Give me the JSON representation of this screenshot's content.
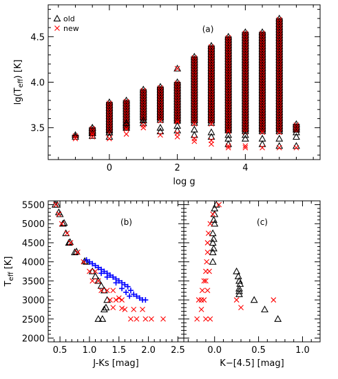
{
  "colors": {
    "old": "#000000",
    "new": "#ff0000",
    "blue": "#0000ff"
  },
  "chart_data": [
    {
      "type": "scatter",
      "panel_label": "(a)",
      "xlabel": "log g",
      "ylabel": "lg(T",
      "ylabel_sub": "eff",
      "ylabel_tail": ") [K]",
      "xlim": [
        -1.8,
        6.2
      ],
      "ylim": [
        3.15,
        4.85
      ],
      "xticks": [
        0,
        2,
        4
      ],
      "yticks": [
        3.5,
        4.0,
        4.5
      ],
      "xtick_labels": [
        "0",
        "2",
        "4"
      ],
      "ytick_labels": [
        "3.5",
        "4.0",
        "4.5"
      ],
      "legend": {
        "old": "old",
        "new": "new",
        "placement": "top-left"
      },
      "columns": [
        {
          "logg": -1.0,
          "min": 3.4,
          "max": 3.42,
          "old_lows": [
            3.4
          ],
          "new_lows": [
            3.38
          ]
        },
        {
          "logg": -0.5,
          "min": 3.42,
          "max": 3.5,
          "old_lows": [
            3.41,
            3.45
          ],
          "new_lows": [
            3.4
          ]
        },
        {
          "logg": -0.5,
          "min": 3.42,
          "max": 3.5,
          "old_lows": [],
          "new_lows": []
        },
        {
          "logg": 0.0,
          "min": 3.44,
          "max": 3.78,
          "old_lows": [
            3.4,
            3.45
          ],
          "new_lows": [
            3.38
          ]
        },
        {
          "logg": 0.5,
          "min": 3.48,
          "max": 3.8,
          "old_lows": [
            3.55
          ],
          "new_lows": [
            3.43
          ]
        },
        {
          "logg": 1.0,
          "min": 3.58,
          "max": 3.92,
          "old_lows": [
            3.55,
            3.58
          ],
          "new_lows": [
            3.5,
            3.53
          ]
        },
        {
          "logg": 1.5,
          "min": 3.58,
          "max": 3.95,
          "old_lows": [
            3.46,
            3.5
          ],
          "new_lows": [
            3.42
          ]
        },
        {
          "logg": 2.0,
          "min": 3.55,
          "max": 4.0,
          "old_lows": [
            3.47,
            3.52
          ],
          "new_lows": [
            3.4,
            3.44
          ]
        },
        {
          "logg": 2.5,
          "min": 3.55,
          "max": 4.28,
          "old_lows": [
            3.42,
            3.48
          ],
          "new_lows": [
            3.35,
            3.38
          ]
        },
        {
          "logg": 3.0,
          "min": 3.55,
          "max": 4.4,
          "old_lows": [
            3.4,
            3.45
          ],
          "new_lows": [
            3.32,
            3.36
          ]
        },
        {
          "logg": 3.5,
          "min": 3.45,
          "max": 4.5,
          "old_lows": [
            3.32,
            3.38,
            3.42
          ],
          "new_lows": [
            3.28,
            3.3
          ]
        },
        {
          "logg": 4.0,
          "min": 3.45,
          "max": 4.55,
          "old_lows": [
            3.38,
            3.42
          ],
          "new_lows": [
            3.28,
            3.3
          ]
        },
        {
          "logg": 4.5,
          "min": 3.45,
          "max": 4.55,
          "old_lows": [
            3.32,
            3.38
          ],
          "new_lows": [
            3.28
          ]
        },
        {
          "logg": 5.0,
          "min": 3.45,
          "max": 4.7,
          "old_lows": [
            3.3,
            3.38
          ],
          "new_lows": [
            3.28
          ]
        },
        {
          "logg": 5.5,
          "min": 3.45,
          "max": 3.54,
          "old_lows": [
            3.3,
            3.4,
            3.45
          ],
          "new_lows": [
            3.28
          ]
        }
      ],
      "stray_points": [
        {
          "series": "old",
          "x": 2.0,
          "y": 4.15
        },
        {
          "series": "new",
          "x": 2.0,
          "y": 4.15
        }
      ]
    },
    {
      "type": "scatter",
      "panel_label": "(b)",
      "xlabel": "J-Ks [mag]",
      "ylabel": "T",
      "ylabel_sub": "eff",
      "ylabel_tail": " [K]",
      "xlim": [
        0.3,
        2.6
      ],
      "ylim": [
        1900,
        5600
      ],
      "xticks": [
        0.5,
        1.0,
        1.5,
        2.0,
        2.5
      ],
      "xtick_labels": [
        "0.5",
        "1.0",
        "1.5",
        "2.0",
        "2.5"
      ],
      "yticks": [
        2000,
        2500,
        3000,
        3500,
        4000,
        4500,
        5000,
        5500
      ],
      "ytick_labels": [
        "2000",
        "2500",
        "3000",
        "3500",
        "4000",
        "4500",
        "5000",
        "5500"
      ],
      "series": [
        {
          "name": "old",
          "marker": "triangle",
          "points": [
            [
              0.42,
              5500
            ],
            [
              0.45,
              5500
            ],
            [
              0.5,
              5250
            ],
            [
              0.55,
              5000
            ],
            [
              0.6,
              4750
            ],
            [
              0.65,
              4500
            ],
            [
              0.75,
              4250
            ],
            [
              0.95,
              4000
            ],
            [
              1.05,
              3750
            ],
            [
              1.15,
              3500
            ],
            [
              1.25,
              3250
            ],
            [
              1.3,
              3000
            ],
            [
              1.28,
              2800
            ],
            [
              1.25,
              2750
            ],
            [
              1.15,
              2500
            ],
            [
              1.22,
              2500
            ],
            [
              0.48,
              5300
            ],
            [
              0.57,
              5020
            ],
            [
              0.67,
              4520
            ],
            [
              0.78,
              4270
            ],
            [
              0.92,
              4020
            ],
            [
              1.1,
              3620
            ],
            [
              1.2,
              3370
            ]
          ]
        },
        {
          "name": "new",
          "marker": "cross",
          "points": [
            [
              0.43,
              5500
            ],
            [
              0.48,
              5250
            ],
            [
              0.53,
              5000
            ],
            [
              0.62,
              4750
            ],
            [
              0.68,
              4500
            ],
            [
              0.8,
              4250
            ],
            [
              0.9,
              4000
            ],
            [
              1.0,
              3750
            ],
            [
              1.1,
              3750
            ],
            [
              1.15,
              3500
            ],
            [
              1.05,
              3500
            ],
            [
              1.2,
              3250
            ],
            [
              1.3,
              3250
            ],
            [
              1.4,
              3250
            ],
            [
              1.35,
              3000
            ],
            [
              1.45,
              3000
            ],
            [
              1.55,
              3000
            ],
            [
              1.6,
              2750
            ],
            [
              1.75,
              2750
            ],
            [
              1.9,
              2750
            ],
            [
              1.7,
              2500
            ],
            [
              1.8,
              2500
            ],
            [
              1.95,
              2500
            ],
            [
              2.05,
              2500
            ],
            [
              2.25,
              2500
            ],
            [
              1.4,
              2800
            ],
            [
              1.55,
              2780
            ],
            [
              1.5,
              3050
            ]
          ]
        },
        {
          "name": "new-blue",
          "marker": "plus",
          "points": [
            [
              0.95,
              4050
            ],
            [
              1.0,
              4000
            ],
            [
              1.05,
              3950
            ],
            [
              1.1,
              3900
            ],
            [
              1.15,
              3850
            ],
            [
              1.2,
              3800
            ],
            [
              1.25,
              3750
            ],
            [
              1.3,
              3700
            ],
            [
              1.35,
              3650
            ],
            [
              1.4,
              3600
            ],
            [
              1.45,
              3550
            ],
            [
              1.5,
              3500
            ],
            [
              1.55,
              3450
            ],
            [
              1.6,
              3400
            ],
            [
              1.65,
              3350
            ],
            [
              1.7,
              3250
            ],
            [
              1.75,
              3150
            ],
            [
              1.8,
              3100
            ],
            [
              1.85,
              3050
            ],
            [
              1.9,
              3000
            ],
            [
              1.95,
              3000
            ],
            [
              1.2,
              3700
            ],
            [
              1.3,
              3600
            ],
            [
              1.45,
              3450
            ],
            [
              1.55,
              3300
            ],
            [
              1.62,
              3200
            ],
            [
              1.68,
              3100
            ]
          ]
        }
      ]
    },
    {
      "type": "scatter",
      "panel_label": "(c)",
      "xlabel": "K−[4.5] [mag]",
      "xlim": [
        -0.35,
        1.2
      ],
      "ylim": [
        1900,
        5600
      ],
      "xticks": [
        0.0,
        0.5,
        1.0
      ],
      "xtick_labels": [
        "0.0",
        "0.5",
        "1.0"
      ],
      "series": [
        {
          "name": "old",
          "marker": "triangle",
          "points": [
            [
              0.02,
              5500
            ],
            [
              0.0,
              5250
            ],
            [
              0.0,
              5000
            ],
            [
              -0.02,
              4750
            ],
            [
              -0.02,
              4500
            ],
            [
              -0.02,
              4250
            ],
            [
              -0.02,
              4000
            ],
            [
              0.25,
              3750
            ],
            [
              0.28,
              3500
            ],
            [
              0.28,
              3300
            ],
            [
              0.28,
              3150
            ],
            [
              0.45,
              3000
            ],
            [
              0.57,
              2750
            ],
            [
              0.72,
              2500
            ],
            [
              0.0,
              5400
            ],
            [
              -0.01,
              5100
            ],
            [
              -0.01,
              4600
            ],
            [
              -0.01,
              4350
            ],
            [
              0.27,
              3620
            ],
            [
              0.29,
              3420
            ],
            [
              0.28,
              3230
            ]
          ]
        },
        {
          "name": "new",
          "marker": "cross",
          "points": [
            [
              0.05,
              5500
            ],
            [
              -0.02,
              5250
            ],
            [
              -0.05,
              5000
            ],
            [
              -0.07,
              4750
            ],
            [
              -0.08,
              4500
            ],
            [
              -0.08,
              4250
            ],
            [
              -0.09,
              4000
            ],
            [
              -0.1,
              3750
            ],
            [
              -0.12,
              3500
            ],
            [
              -0.14,
              3250
            ],
            [
              -0.15,
              3000
            ],
            [
              -0.15,
              2750
            ],
            [
              -0.2,
              2500
            ],
            [
              -0.1,
              2500
            ],
            [
              -0.05,
              2500
            ],
            [
              -0.18,
              3000
            ],
            [
              -0.12,
              3000
            ],
            [
              0.25,
              3000
            ],
            [
              0.3,
              2800
            ],
            [
              0.67,
              3000
            ],
            [
              -0.06,
              3750
            ],
            [
              -0.1,
              3500
            ],
            [
              -0.08,
              3250
            ]
          ]
        }
      ]
    }
  ]
}
